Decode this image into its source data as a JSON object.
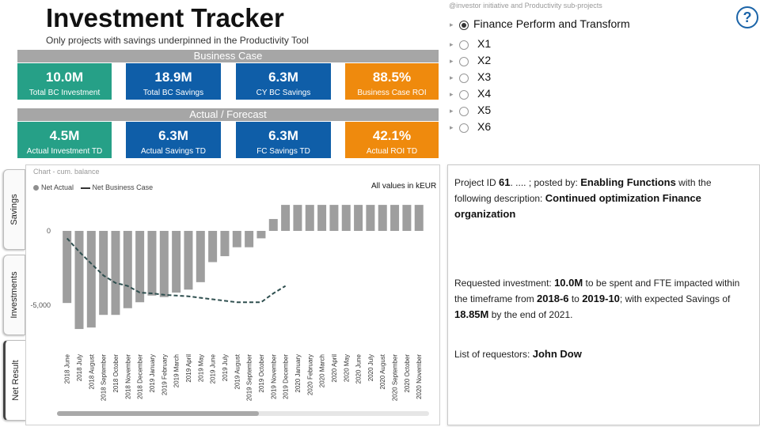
{
  "header": {
    "title": "Investment Tracker",
    "subtitle": "Only projects with savings underpinned in the Productivity Tool"
  },
  "business_case": {
    "section_label": "Business Case",
    "kpis": [
      {
        "value": "10.0M",
        "label": "Total BC Investment",
        "color": "#26a087"
      },
      {
        "value": "18.9M",
        "label": "Total BC Savings",
        "color": "#0f5ea8"
      },
      {
        "value": "6.3M",
        "label": "CY BC Savings",
        "color": "#0f5ea8"
      },
      {
        "value": "88.5%",
        "label": "Business Case ROI",
        "color": "#ef8a0d"
      }
    ]
  },
  "actual_forecast": {
    "section_label": "Actual / Forecast",
    "kpis": [
      {
        "value": "4.5M",
        "label": "Actual Investment TD",
        "color": "#26a087"
      },
      {
        "value": "6.3M",
        "label": "Actual Savings TD",
        "color": "#0f5ea8"
      },
      {
        "value": "6.3M",
        "label": "FC Savings TD",
        "color": "#0f5ea8"
      },
      {
        "value": "42.1%",
        "label": "Actual ROI TD",
        "color": "#ef8a0d"
      }
    ]
  },
  "side_tabs": [
    {
      "label": "Savings",
      "active": false
    },
    {
      "label": "Investments",
      "active": false
    },
    {
      "label": "Net Result",
      "active": true
    }
  ],
  "chart": {
    "caption": "Chart - cum. balance",
    "legend_actual": "Net Actual",
    "legend_bc": "Net Business Case",
    "units_note": "All values in kEUR",
    "colors": {
      "bar": "#9e9e9e",
      "line": "#2f4f4f"
    }
  },
  "chart_data": {
    "type": "bar",
    "categories": [
      "2018 June",
      "2018 July",
      "2018 August",
      "2018 September",
      "2018 October",
      "2018 November",
      "2018 December",
      "2019 January",
      "2019 February",
      "2019 March",
      "2019 April",
      "2019 May",
      "2019 June",
      "2019 July",
      "2019 August",
      "2019 September",
      "2019 October",
      "2019 November",
      "2019 December",
      "2020 January",
      "2020 February",
      "2020 March",
      "2020 April",
      "2020 May",
      "2020 June",
      "2020 July",
      "2020 August",
      "2020 September",
      "2020 October",
      "2020 November"
    ],
    "y_ticks": [
      0,
      -5000
    ],
    "y_tick_labels": [
      "0",
      "-5,000"
    ],
    "ylim": [
      -6600,
      1900
    ],
    "legend_position": "top-left",
    "series": [
      {
        "name": "Net Actual",
        "type": "bar",
        "values": [
          -4850,
          -6600,
          -6500,
          -5650,
          -5650,
          -5200,
          -4800,
          -4350,
          -4450,
          -4150,
          -3950,
          -3450,
          -2100,
          -1700,
          -1100,
          -1100,
          -500,
          800,
          1750,
          1750,
          1750,
          1750,
          1750,
          1750,
          1750,
          1750,
          1750,
          1750,
          1750,
          1750
        ]
      },
      {
        "name": "Net Business Case",
        "type": "line",
        "values": [
          -500,
          -1400,
          -2200,
          -3000,
          -3500,
          -3700,
          -4150,
          -4200,
          -4300,
          -4350,
          -4400,
          -4500,
          -4600,
          -4700,
          -4800,
          -4800,
          -4800,
          -4200,
          -3700,
          null,
          null,
          null,
          null,
          null,
          null,
          null,
          null,
          null,
          null,
          null
        ]
      }
    ]
  },
  "slicer": {
    "header": "@investor initiative and Productivity sub-projects",
    "items": [
      {
        "label": "Finance Perform and Transform",
        "selected": true
      },
      {
        "label": "X1",
        "selected": false
      },
      {
        "label": "X2",
        "selected": false
      },
      {
        "label": "X3",
        "selected": false
      },
      {
        "label": "X4",
        "selected": false
      },
      {
        "label": "X5",
        "selected": false
      },
      {
        "label": "X6",
        "selected": false
      }
    ]
  },
  "help_icon": "?",
  "detail": {
    "p1_a": "Project ID ",
    "project_id": "61",
    "p1_b": ".      ....     ; posted by: ",
    "posted_by": "Enabling Functions",
    "p1_c": " with the following description: ",
    "description": "Continued optimization Finance organization",
    "p2_a": "Requested investment: ",
    "investment": "10.0M",
    "p2_b": " to be spent and        FTE impacted within the timeframe from ",
    "start": "2018-6",
    "p2_c": " to ",
    "end": "2019-10",
    "p2_d": "; with expected Savings of ",
    "savings": "18.85M",
    "p2_e": " by the end of 2021.",
    "p3_a": "List of requestors:   ",
    "requestor": "John Dow"
  }
}
